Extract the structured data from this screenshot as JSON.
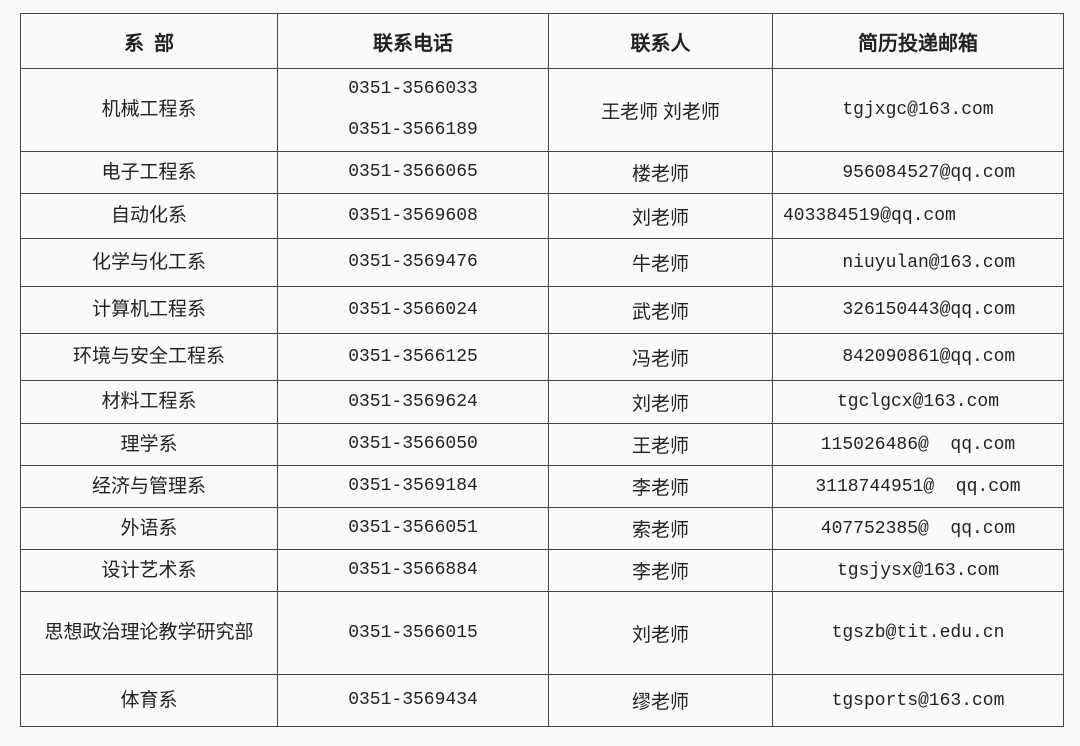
{
  "headers": [
    "系  部",
    "联系电话",
    "联系人",
    "简历投递邮箱"
  ],
  "rows": [
    {
      "dept": "机械工程系",
      "phones": [
        "0351-3566033",
        "0351-3566189"
      ],
      "contact": "王老师 刘老师",
      "email": "tgjxgc@163.com"
    },
    {
      "dept": "电子工程系",
      "phones": [
        "0351-3566065"
      ],
      "contact": "楼老师",
      "email": "  956084527@qq.com"
    },
    {
      "dept": "自动化系",
      "phones": [
        "0351-3569608"
      ],
      "contact": "刘老师",
      "email": "403384519@qq.com",
      "align": "left"
    },
    {
      "dept": "化学与化工系",
      "phones": [
        "0351-3569476"
      ],
      "contact": "牛老师",
      "email": "  niuyulan@163.com"
    },
    {
      "dept": "计算机工程系",
      "phones": [
        "0351-3566024"
      ],
      "contact": "武老师",
      "email": "  326150443@qq.com"
    },
    {
      "dept": "环境与安全工程系",
      "phones": [
        "0351-3566125"
      ],
      "contact": "冯老师",
      "email": "  842090861@qq.com"
    },
    {
      "dept": "材料工程系",
      "phones": [
        "0351-3569624"
      ],
      "contact": "刘老师",
      "email": "tgclgcx@163.com"
    },
    {
      "dept": "理学系",
      "phones": [
        "0351-3566050"
      ],
      "contact": "王老师",
      "email": "115026486@  qq.com"
    },
    {
      "dept": "经济与管理系",
      "phones": [
        "0351-3569184"
      ],
      "contact": "李老师",
      "email": "3118744951@  qq.com"
    },
    {
      "dept": "外语系",
      "phones": [
        "0351-3566051"
      ],
      "contact": "索老师",
      "email": "407752385@  qq.com"
    },
    {
      "dept": "设计艺术系",
      "phones": [
        "0351-3566884"
      ],
      "contact": "李老师",
      "email": "tgsjysx@163.com"
    },
    {
      "dept": "思想政治理论教学研究部",
      "phones": [
        "0351-3566015"
      ],
      "contact": "刘老师",
      "email": "tgszb@tit.edu.cn"
    },
    {
      "dept": "体育系",
      "phones": [
        "0351-3569434"
      ],
      "contact": "缪老师",
      "email": "tgsports@163.com"
    }
  ]
}
